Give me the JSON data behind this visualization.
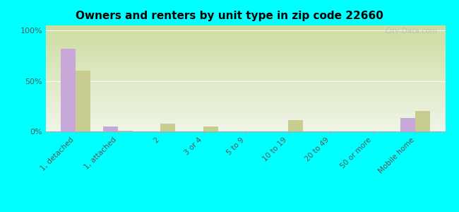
{
  "title": "Owners and renters by unit type in zip code 22660",
  "categories": [
    "1, detached",
    "1, attached",
    "2",
    "3 or 4",
    "5 to 9",
    "10 to 19",
    "20 to 49",
    "50 or more",
    "Mobile home"
  ],
  "owner_values": [
    82,
    5,
    0,
    0,
    0,
    0,
    0,
    0,
    13
  ],
  "renter_values": [
    60,
    1,
    8,
    5,
    0,
    11,
    0,
    0,
    20
  ],
  "owner_color": "#c8a8d8",
  "renter_color": "#c8cc90",
  "background_color": "#00ffff",
  "grad_top": "#ccdda0",
  "grad_bottom": "#f0f5e8",
  "ylabel_ticks": [
    "0%",
    "50%",
    "100%"
  ],
  "yticks": [
    0,
    50,
    100
  ],
  "ylim": [
    0,
    105
  ],
  "watermark": "City-Data.com"
}
